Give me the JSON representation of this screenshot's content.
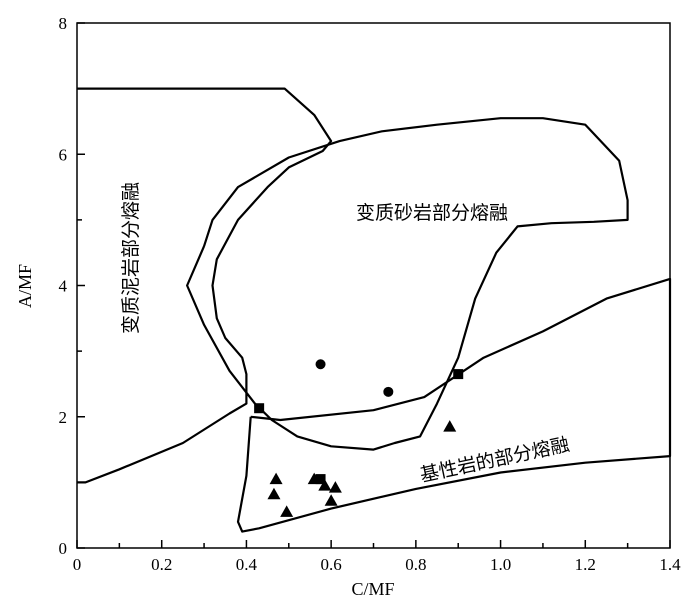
{
  "chart_data": {
    "type": "scatter",
    "title": "",
    "xlabel": "C/MF",
    "ylabel": "A/MF",
    "xlim": [
      0,
      1.4
    ],
    "ylim": [
      0,
      8
    ],
    "x_ticks": [
      "0",
      "0.2",
      "0.4",
      "0.6",
      "0.8",
      "1.0",
      "1.2",
      "1.4"
    ],
    "y_ticks": [
      "0",
      "2",
      "4",
      "6",
      "8"
    ],
    "grid": false,
    "region_labels": {
      "metapelite": "变质泥岩部分熔融",
      "metagreywacke": "变质砂岩部分熔融",
      "basalt": "基性岩的部分熔融"
    },
    "regions": [
      {
        "key": "metapelite",
        "points": [
          [
            0.0,
            7.0
          ],
          [
            0.49,
            7.0
          ],
          [
            0.56,
            6.6
          ],
          [
            0.6,
            6.2
          ],
          [
            0.58,
            6.05
          ],
          [
            0.5,
            5.8
          ],
          [
            0.45,
            5.5
          ],
          [
            0.38,
            5.0
          ],
          [
            0.33,
            4.4
          ],
          [
            0.32,
            4.0
          ],
          [
            0.33,
            3.5
          ],
          [
            0.35,
            3.2
          ],
          [
            0.39,
            2.9
          ],
          [
            0.4,
            2.65
          ],
          [
            0.4,
            2.2
          ],
          [
            0.36,
            2.05
          ],
          [
            0.25,
            1.6
          ],
          [
            0.1,
            1.2
          ],
          [
            0.02,
            1.0
          ],
          [
            0.0,
            1.0
          ]
        ]
      },
      {
        "key": "metagreywacke",
        "points": [
          [
            0.3,
            4.6
          ],
          [
            0.32,
            5.0
          ],
          [
            0.38,
            5.5
          ],
          [
            0.5,
            5.95
          ],
          [
            0.62,
            6.2
          ],
          [
            0.72,
            6.35
          ],
          [
            0.85,
            6.45
          ],
          [
            1.0,
            6.55
          ],
          [
            1.1,
            6.55
          ],
          [
            1.2,
            6.45
          ],
          [
            1.28,
            5.9
          ],
          [
            1.3,
            5.3
          ],
          [
            1.3,
            5.0
          ],
          [
            1.22,
            4.97
          ],
          [
            1.12,
            4.95
          ],
          [
            1.04,
            4.9
          ],
          [
            0.99,
            4.5
          ],
          [
            0.94,
            3.8
          ],
          [
            0.9,
            2.9
          ],
          [
            0.85,
            2.2
          ],
          [
            0.81,
            1.7
          ],
          [
            0.75,
            1.6
          ],
          [
            0.7,
            1.5
          ],
          [
            0.6,
            1.55
          ],
          [
            0.52,
            1.7
          ],
          [
            0.46,
            1.95
          ],
          [
            0.42,
            2.2
          ],
          [
            0.36,
            2.7
          ],
          [
            0.3,
            3.4
          ],
          [
            0.26,
            4.0
          ],
          [
            0.3,
            4.6
          ]
        ]
      },
      {
        "key": "basalt",
        "points": [
          [
            0.41,
            2.0
          ],
          [
            0.48,
            1.95
          ],
          [
            0.7,
            2.1
          ],
          [
            0.82,
            2.3
          ],
          [
            0.96,
            2.9
          ],
          [
            1.1,
            3.3
          ],
          [
            1.25,
            3.8
          ],
          [
            1.4,
            4.1
          ],
          [
            1.4,
            1.4
          ],
          [
            1.2,
            1.3
          ],
          [
            1.0,
            1.15
          ],
          [
            0.8,
            0.9
          ],
          [
            0.6,
            0.6
          ],
          [
            0.43,
            0.3
          ],
          [
            0.39,
            0.25
          ],
          [
            0.38,
            0.4
          ],
          [
            0.4,
            1.1
          ],
          [
            0.41,
            2.0
          ]
        ]
      }
    ],
    "series": [
      {
        "marker": "circle",
        "points": [
          [
            0.575,
            2.8
          ],
          [
            0.735,
            2.38
          ]
        ]
      },
      {
        "marker": "square",
        "points": [
          [
            0.43,
            2.13
          ],
          [
            0.9,
            2.65
          ],
          [
            0.575,
            1.05
          ]
        ]
      },
      {
        "marker": "triangle",
        "points": [
          [
            0.88,
            1.85
          ],
          [
            0.47,
            1.05
          ],
          [
            0.465,
            0.82
          ],
          [
            0.495,
            0.55
          ],
          [
            0.56,
            1.05
          ],
          [
            0.585,
            0.95
          ],
          [
            0.6,
            0.72
          ],
          [
            0.61,
            0.92
          ]
        ]
      }
    ]
  }
}
